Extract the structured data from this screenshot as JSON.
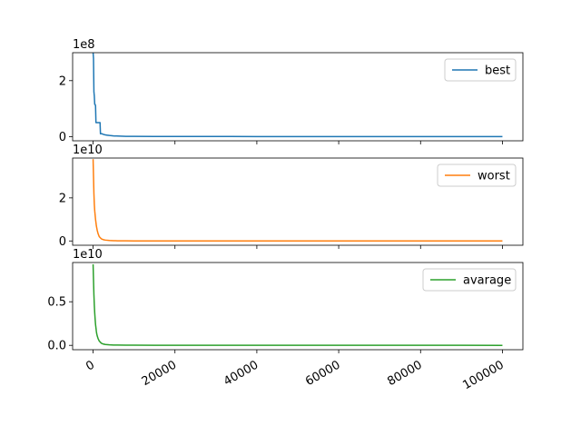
{
  "chart_data": [
    {
      "type": "line",
      "series": [
        {
          "name": "best",
          "color": "#1f77b4",
          "x": [
            0,
            100,
            200,
            300,
            400,
            500,
            600,
            700,
            800,
            900,
            1000,
            1100,
            1200,
            1300,
            1400,
            1500,
            1600,
            1700,
            1800,
            2000,
            2200,
            2500,
            3000,
            3500,
            4000,
            5000,
            6000,
            8000,
            10000,
            15000,
            20000,
            40000,
            60000,
            80000,
            100000
          ],
          "y": [
            300000000.0,
            280000000.0,
            160000000.0,
            145000000.0,
            115000000.0,
            115000000.0,
            110000000.0,
            50000000.0,
            50000000.0,
            50000000.0,
            50000000.0,
            50000000.0,
            50000000.0,
            50000000.0,
            50000000.0,
            50000000.0,
            50000000.0,
            50000000.0,
            10000000.0,
            10000000.0,
            10000000.0,
            8000000.0,
            6000000.0,
            5000000.0,
            4000000.0,
            2500000.0,
            2000000.0,
            1000000.0,
            800000.0,
            500000.0,
            300000.0,
            200000.0,
            100000.0,
            100000.0,
            100000.0
          ]
        }
      ],
      "offset_label": "1e8",
      "yticks": [
        0,
        2
      ],
      "ylim": [
        -0.15,
        3.0
      ],
      "legend": "top-right"
    },
    {
      "type": "line",
      "series": [
        {
          "name": "worst",
          "color": "#ff7f0e",
          "x": [
            0,
            100,
            200,
            300,
            400,
            500,
            600,
            700,
            800,
            900,
            1000,
            1200,
            1500,
            2000,
            2500,
            3000,
            4000,
            5000,
            6000,
            8000,
            10000,
            15000,
            20000,
            40000,
            60000,
            80000,
            100000
          ],
          "y": [
            38000000000.0,
            30000000000.0,
            22000000000.0,
            17000000000.0,
            14000000000.0,
            12000000000.0,
            10000000000.0,
            8500000000.0,
            7000000000.0,
            6000000000.0,
            5000000000.0,
            3500000000.0,
            2000000000.0,
            1000000000.0,
            600000000.0,
            400000000.0,
            200000000.0,
            120000000.0,
            80000000.0,
            50000000.0,
            30000000.0,
            20000000.0,
            10000000.0,
            5000000.0,
            3000000.0,
            2000000.0,
            1000000.0
          ]
        }
      ],
      "offset_label": "1e10",
      "yticks": [
        0,
        2
      ],
      "ylim": [
        -0.2,
        3.85
      ],
      "legend": "top-right"
    },
    {
      "type": "line",
      "series": [
        {
          "name": "avarage",
          "color": "#2ca02c",
          "x": [
            0,
            100,
            200,
            300,
            400,
            500,
            600,
            700,
            800,
            900,
            1000,
            1200,
            1500,
            2000,
            2500,
            3000,
            4000,
            5000,
            6000,
            8000,
            10000,
            15000,
            20000,
            40000,
            60000,
            80000,
            100000
          ],
          "y": [
            9300000000.0,
            7500000000.0,
            5800000000.0,
            4600000000.0,
            3700000000.0,
            3000000000.0,
            2400000000.0,
            2000000000.0,
            1600000000.0,
            1300000000.0,
            1100000000.0,
            800000000.0,
            500000000.0,
            250000000.0,
            150000000.0,
            100000000.0,
            60000000.0,
            40000000.0,
            30000000.0,
            20000000.0,
            15000000.0,
            10000000.0,
            8000000.0,
            4000000.0,
            3000000.0,
            2000000.0,
            1000000.0
          ]
        }
      ],
      "offset_label": "1e10",
      "yticks": [
        0.0,
        0.5
      ],
      "yticklabels": [
        "0.0",
        "0.5"
      ],
      "ylim": [
        -0.05,
        0.95
      ],
      "legend": "top-right"
    }
  ],
  "shared_x": {
    "xlim": [
      -5000,
      105000
    ],
    "xticks": [
      0,
      20000,
      40000,
      60000,
      80000,
      100000
    ],
    "xticklabels": [
      "0",
      "20000",
      "40000",
      "60000",
      "80000",
      "100000"
    ],
    "xtick_rotation": "30deg"
  }
}
